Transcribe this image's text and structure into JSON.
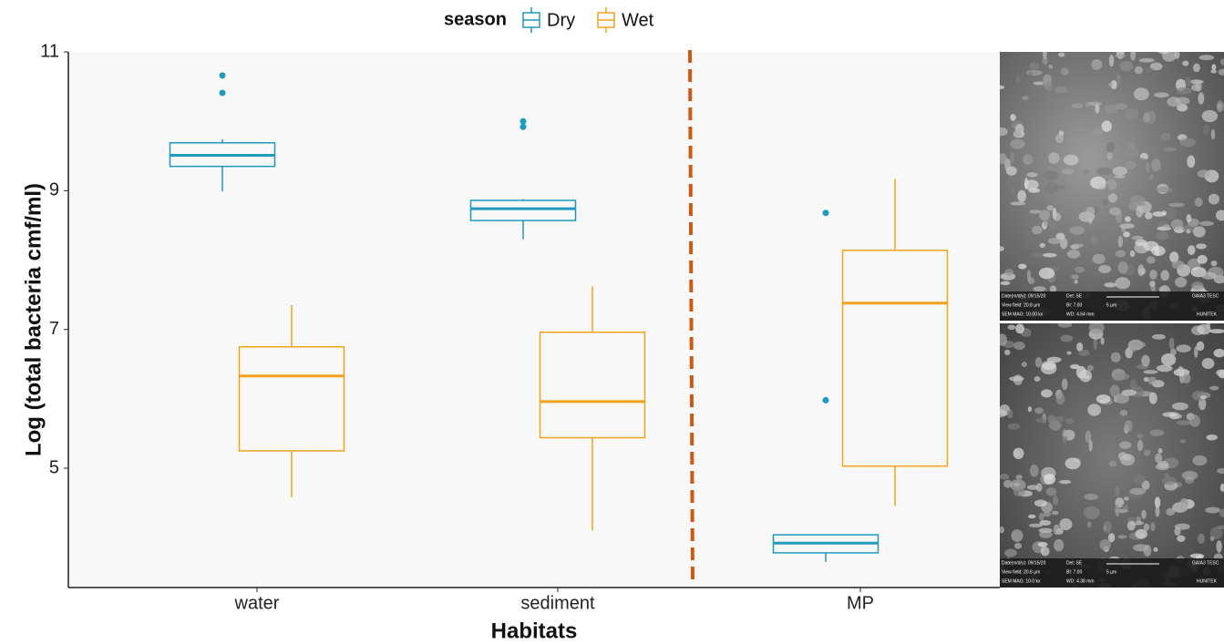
{
  "chart_data": {
    "type": "box",
    "y_label": "Log (total bacteria cmf/ml)",
    "x_label": "Habitats",
    "legend_title": "season",
    "categories": [
      "water",
      "sediment",
      "MP"
    ],
    "ylim": [
      3.28,
      11
    ],
    "yticks": [
      5,
      7,
      9,
      11
    ],
    "series": [
      {
        "name": "Dry",
        "color": "#1f99bd",
        "boxes": [
          {
            "low": 8.99,
            "q1": 9.35,
            "median": 9.51,
            "q3": 9.69,
            "high": 9.74,
            "outliers": [
              10.66,
              10.41
            ]
          },
          {
            "low": 8.3,
            "q1": 8.57,
            "median": 8.74,
            "q3": 8.86,
            "high": 8.88,
            "outliers": [
              10.0,
              9.92
            ]
          },
          {
            "low": 3.65,
            "q1": 3.78,
            "median": 3.92,
            "q3": 4.04,
            "high": 4.04,
            "outliers": [
              8.68,
              5.98
            ]
          }
        ]
      },
      {
        "name": "Wet",
        "color": "#f2a31b",
        "boxes": [
          {
            "low": 4.58,
            "q1": 5.25,
            "median": 6.33,
            "q3": 6.75,
            "high": 7.35,
            "outliers": []
          },
          {
            "low": 4.1,
            "q1": 5.44,
            "median": 5.96,
            "q3": 6.96,
            "high": 7.62,
            "outliers": []
          },
          {
            "low": 4.46,
            "q1": 5.03,
            "median": 7.38,
            "q3": 8.14,
            "high": 9.17,
            "outliers": []
          }
        ]
      }
    ]
  },
  "micrographs": [
    {
      "date": "Date(m/d/y): 09/15/20",
      "det": "Det: SE",
      "view": "View field: 20.8 µm",
      "bi": "BI: 7.00",
      "scale": "5 µm",
      "mag": "SEM MAG: 10.00 kx",
      "wd": "WD: 4.64 mm",
      "brand": "GAIA3 TESC",
      "lab": "HUNITEK"
    },
    {
      "date": "Date(m/d/y): 09/15/20",
      "det": "Det: SE",
      "view": "View field: 20.8 µm",
      "bi": "BI: 7.00",
      "scale": "5 µm",
      "mag": "SEM MAG: 10.0 kx",
      "wd": "WD: 4.38 mm",
      "brand": "GAIA3 TESC",
      "lab": "HUNITEK"
    }
  ]
}
